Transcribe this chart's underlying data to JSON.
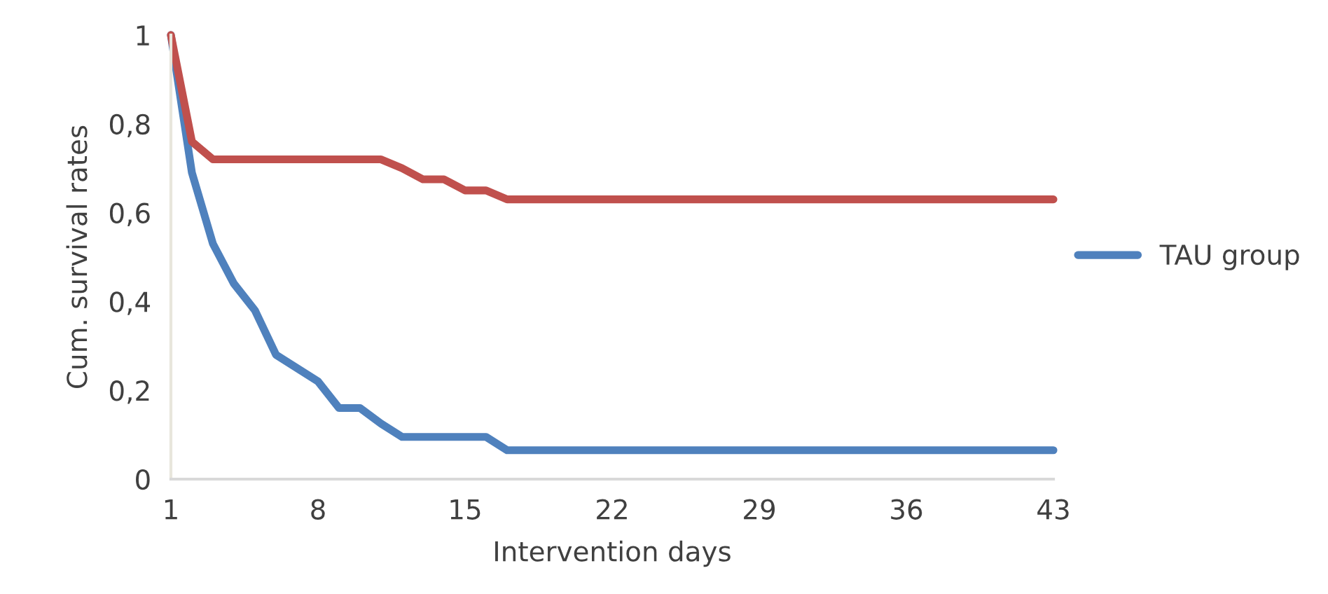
{
  "chart_data": {
    "type": "line",
    "xlabel": "Intervention days",
    "ylabel": "Cum. survival rates",
    "x": [
      1,
      2,
      3,
      4,
      5,
      6,
      7,
      8,
      9,
      10,
      11,
      12,
      13,
      14,
      15,
      16,
      17,
      18,
      19,
      20,
      21,
      22,
      23,
      24,
      25,
      26,
      27,
      28,
      29,
      30,
      31,
      32,
      33,
      34,
      35,
      36,
      37,
      38,
      39,
      40,
      41,
      42,
      43
    ],
    "series": [
      {
        "name": "TAU group",
        "color": "#4f81bd",
        "values": [
          1.0,
          0.69,
          0.53,
          0.44,
          0.38,
          0.28,
          0.25,
          0.22,
          0.16,
          0.16,
          0.125,
          0.095,
          0.095,
          0.095,
          0.095,
          0.095,
          0.065,
          0.065,
          0.065,
          0.065,
          0.065,
          0.065,
          0.065,
          0.065,
          0.065,
          0.065,
          0.065,
          0.065,
          0.065,
          0.065,
          0.065,
          0.065,
          0.065,
          0.065,
          0.065,
          0.065,
          0.065,
          0.065,
          0.065,
          0.065,
          0.065,
          0.065,
          0.065
        ]
      },
      {
        "color": "#c0504d",
        "values": [
          1.0,
          0.76,
          0.72,
          0.72,
          0.72,
          0.72,
          0.72,
          0.72,
          0.72,
          0.72,
          0.72,
          0.7,
          0.675,
          0.675,
          0.65,
          0.65,
          0.63,
          0.63,
          0.63,
          0.63,
          0.63,
          0.63,
          0.63,
          0.63,
          0.63,
          0.63,
          0.63,
          0.63,
          0.63,
          0.63,
          0.63,
          0.63,
          0.63,
          0.63,
          0.63,
          0.63,
          0.63,
          0.63,
          0.63,
          0.63,
          0.63,
          0.63,
          0.63
        ]
      }
    ],
    "xlim": [
      1,
      43
    ],
    "xticks": [
      1,
      8,
      15,
      22,
      29,
      36,
      43
    ],
    "ylim": [
      0,
      1
    ],
    "yticks": [
      0,
      {
        "value": 0.2,
        "label": "0,2"
      },
      {
        "value": 0.4,
        "label": "0,4"
      },
      {
        "value": 0.6,
        "label": "0,6"
      },
      {
        "value": 0.8,
        "label": "0,8"
      },
      1
    ],
    "grid": false,
    "legend": "right",
    "marker": "none",
    "line_style": "solid"
  }
}
